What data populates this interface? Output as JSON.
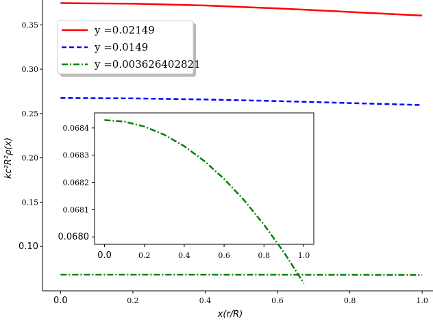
{
  "chart_data": [
    {
      "type": "line",
      "xlabel": "x(r/R)",
      "ylabel": "kc²R²ρ(x)",
      "xlim": [
        -0.05,
        1.03
      ],
      "ylim": [
        0.05,
        0.378
      ],
      "x_ticks": [
        {
          "v": 0.0,
          "label": "0.0"
        },
        {
          "v": 0.2,
          "label": "0.2"
        },
        {
          "v": 0.4,
          "label": "0.4"
        },
        {
          "v": 0.6,
          "label": "0.6"
        },
        {
          "v": 0.8,
          "label": "0.8"
        },
        {
          "v": 1.0,
          "label": "1.0"
        }
      ],
      "y_ticks": [
        {
          "v": 0.1,
          "label": "0.10"
        },
        {
          "v": 0.15,
          "label": "0.15"
        },
        {
          "v": 0.2,
          "label": "0.20"
        },
        {
          "v": 0.25,
          "label": "0.25"
        },
        {
          "v": 0.3,
          "label": "0.30"
        },
        {
          "v": 0.35,
          "label": "0.35"
        }
      ],
      "legend_position": "top-left",
      "series": [
        {
          "name": "y =0.02149",
          "color": "#ff0000",
          "style": "solid",
          "x": [
            0.0,
            0.2,
            0.4,
            0.6,
            0.8,
            1.0
          ],
          "y": [
            0.3745,
            0.3738,
            0.3718,
            0.3685,
            0.3645,
            0.3605
          ]
        },
        {
          "name": "y =0.0149",
          "color": "#0000ff",
          "style": "dashed",
          "x": [
            0.0,
            0.2,
            0.4,
            0.6,
            0.8,
            1.0
          ],
          "y": [
            0.2675,
            0.267,
            0.2658,
            0.264,
            0.2618,
            0.2595
          ]
        },
        {
          "name": "y =0.003626402821",
          "color": "#008000",
          "style": "dashdot",
          "x": [
            0.0,
            0.2,
            0.4,
            0.6,
            0.8,
            1.0
          ],
          "y": [
            0.0684,
            0.0684,
            0.0683,
            0.0682,
            0.0681,
            0.068
          ]
        }
      ]
    },
    {
      "type": "line",
      "inset": true,
      "xlim": [
        -0.05,
        1.05
      ],
      "ylim": [
        0.067973,
        0.068455
      ],
      "x_ticks": [
        {
          "v": 0.0,
          "label": "0.0"
        },
        {
          "v": 0.2,
          "label": "0.2"
        },
        {
          "v": 0.4,
          "label": "0.4"
        },
        {
          "v": 0.6,
          "label": "0.6"
        },
        {
          "v": 0.8,
          "label": "0.8"
        },
        {
          "v": 1.0,
          "label": "1.0"
        }
      ],
      "y_ticks": [
        {
          "v": 0.068,
          "label": "0.0680"
        },
        {
          "v": 0.0681,
          "label": "0.0681"
        },
        {
          "v": 0.0682,
          "label": "0.0682"
        },
        {
          "v": 0.0683,
          "label": "0.0683"
        },
        {
          "v": 0.0684,
          "label": "0.0684"
        }
      ],
      "series": [
        {
          "color": "#008000",
          "style": "dashdot",
          "x": [
            0.0,
            0.1,
            0.2,
            0.3,
            0.4,
            0.5,
            0.6,
            0.7,
            0.8,
            0.9,
            1.0
          ],
          "y": [
            0.068429,
            0.068423,
            0.068405,
            0.068375,
            0.068333,
            0.068279,
            0.068213,
            0.068135,
            0.068045,
            0.067944,
            0.06783
          ]
        }
      ]
    }
  ]
}
